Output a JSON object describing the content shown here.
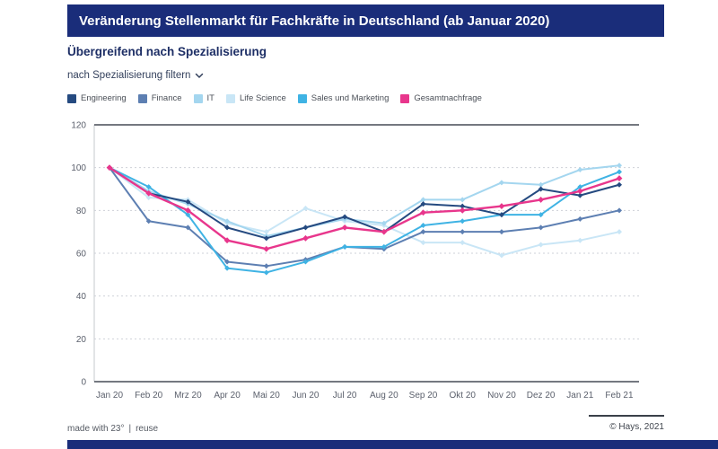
{
  "header": {
    "title": "Veränderung Stellenmarkt für Fachkräfte in Deutschland (ab Januar 2020)"
  },
  "subtitle": "Übergreifend nach Spezialisierung",
  "filter": {
    "label": "nach Spezialisierung filtern",
    "chevron_icon": "chevron-down"
  },
  "colors": {
    "header_bg": "#1a2d7a",
    "axis_text": "#5b606c",
    "grid_dashed": "#ced1d8",
    "axis_solid": "#464b57"
  },
  "footer": {
    "made_with": "made with 23°",
    "separator": "|",
    "reuse": "reuse",
    "copyright": "© Hays, 2021"
  },
  "chart_data": {
    "type": "line",
    "title": "Übergreifend nach Spezialisierung",
    "xlabel": "",
    "ylabel": "",
    "ylim": [
      0,
      120
    ],
    "yticks": [
      0,
      20,
      40,
      60,
      80,
      100,
      120
    ],
    "grid": "horizontal-dashed",
    "legend_position": "top",
    "categories": [
      "Jan 20",
      "Feb 20",
      "Mrz 20",
      "Apr 20",
      "Mai 20",
      "Jun 20",
      "Jul 20",
      "Aug 20",
      "Sep 20",
      "Okt 20",
      "Nov 20",
      "Dez 20",
      "Jan 21",
      "Feb 21"
    ],
    "series": [
      {
        "name": "Engineering",
        "color": "#254a80",
        "values": [
          100,
          88,
          84,
          72,
          67,
          72,
          77,
          70,
          83,
          82,
          78,
          90,
          87,
          92
        ]
      },
      {
        "name": "Finance",
        "color": "#5d7fb2",
        "values": [
          100,
          75,
          72,
          56,
          54,
          57,
          63,
          62,
          70,
          70,
          70,
          72,
          76,
          80
        ]
      },
      {
        "name": "IT",
        "color": "#a4d6ef",
        "values": [
          100,
          89,
          83,
          75,
          68,
          72,
          76,
          74,
          85,
          85,
          93,
          92,
          99,
          101
        ]
      },
      {
        "name": "Life Science",
        "color": "#c9e6f6",
        "values": [
          100,
          86,
          85,
          74,
          70,
          81,
          75,
          73,
          65,
          65,
          59,
          64,
          66,
          70
        ]
      },
      {
        "name": "Sales und Marketing",
        "color": "#3fb3e4",
        "values": [
          100,
          91,
          78,
          53,
          51,
          56,
          63,
          63,
          73,
          75,
          78,
          78,
          91,
          98
        ]
      },
      {
        "name": "Gesamtnachfrage",
        "color": "#e8368c",
        "values": [
          100,
          88,
          80,
          66,
          62,
          67,
          72,
          70,
          79,
          80,
          82,
          85,
          89,
          95
        ]
      }
    ]
  }
}
